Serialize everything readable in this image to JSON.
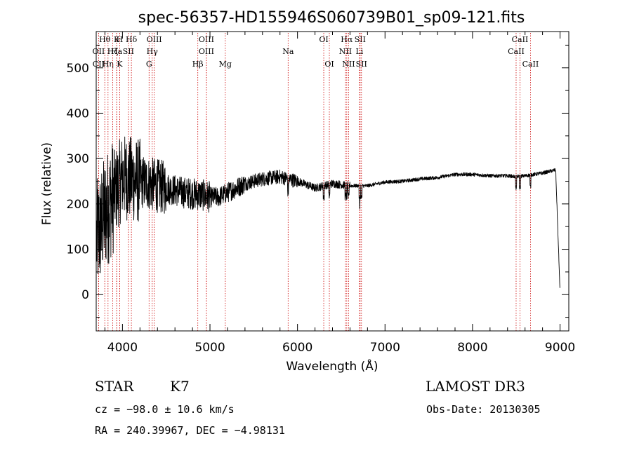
{
  "chart_data": {
    "type": "line",
    "title": "spec-56357-HD155946S060739B01_sp09-121.fits",
    "xlabel": "Wavelength (Å)",
    "ylabel": "Flux (relative)",
    "xlim": [
      3700,
      9100
    ],
    "ylim": [
      -80,
      580
    ],
    "xticks": [
      4000,
      5000,
      6000,
      7000,
      8000,
      9000
    ],
    "yticks": [
      0,
      100,
      200,
      300,
      400,
      500
    ],
    "spectrum_envelope": {
      "x": [
        3700,
        3800,
        3900,
        4000,
        4100,
        4200,
        4300,
        4400,
        4500,
        4700,
        4900,
        5000,
        5100,
        5200,
        5400,
        5600,
        5800,
        5900,
        6000,
        6200,
        6400,
        6600,
        6800,
        7000,
        7200,
        7400,
        7600,
        7800,
        8000,
        8200,
        8400,
        8500,
        8600,
        8800,
        8950,
        9000
      ],
      "y": [
        120,
        180,
        220,
        260,
        255,
        250,
        245,
        240,
        235,
        225,
        220,
        215,
        215,
        225,
        245,
        255,
        260,
        255,
        250,
        235,
        245,
        240,
        240,
        248,
        250,
        255,
        258,
        265,
        265,
        262,
        262,
        260,
        262,
        268,
        275,
        5
      ]
    },
    "lines": [
      {
        "label": "Hθ",
        "x": 3798,
        "row": 0
      },
      {
        "label": "OII",
        "x": 3727,
        "row": 1
      },
      {
        "label": "CII",
        "x": 3727,
        "row": 2
      },
      {
        "label": "Hη",
        "x": 3835,
        "row": 2
      },
      {
        "label": "Hζ",
        "x": 3889,
        "row": 1
      },
      {
        "label": "K",
        "x": 3934,
        "row": 0
      },
      {
        "label": "Ha",
        "x": 3934,
        "row": 1
      },
      {
        "label": "H",
        "x": 3968,
        "row": 0
      },
      {
        "label": "K",
        "x": 3968,
        "row": 2
      },
      {
        "label": "SII",
        "x": 4068,
        "row": 1
      },
      {
        "label": "Hδ",
        "x": 4102,
        "row": 0
      },
      {
        "label": "OIII",
        "x": 4363,
        "row": 0
      },
      {
        "label": "Hγ",
        "x": 4340,
        "row": 1
      },
      {
        "label": "G",
        "x": 4304,
        "row": 2
      },
      {
        "label": "OIII",
        "x": 4959,
        "row": 0
      },
      {
        "label": "OIII",
        "x": 4959,
        "row": 1
      },
      {
        "label": "Hβ",
        "x": 4861,
        "row": 2
      },
      {
        "label": "Mg",
        "x": 5175,
        "row": 2
      },
      {
        "label": "Na",
        "x": 5893,
        "row": 1
      },
      {
        "label": "OI",
        "x": 6300,
        "row": 0
      },
      {
        "label": "OI",
        "x": 6364,
        "row": 2
      },
      {
        "label": "Hα",
        "x": 6563,
        "row": 0
      },
      {
        "label": "SII",
        "x": 6716,
        "row": 0
      },
      {
        "label": "NII",
        "x": 6548,
        "row": 1
      },
      {
        "label": "Li",
        "x": 6708,
        "row": 1
      },
      {
        "label": "NII",
        "x": 6584,
        "row": 2
      },
      {
        "label": "SII",
        "x": 6731,
        "row": 2
      },
      {
        "label": "CaII",
        "x": 8542,
        "row": 0
      },
      {
        "label": "CaII",
        "x": 8498,
        "row": 1
      },
      {
        "label": "CaII",
        "x": 8662,
        "row": 2
      }
    ]
  },
  "info": {
    "class_label": "STAR",
    "subclass": "K7",
    "survey": "LAMOST DR3",
    "cz": "cz = −98.0 ± 10.6 km/s",
    "obs_date": "Obs-Date: 20130305",
    "coords": "RA = 240.39967, DEC =  −4.98131"
  },
  "colors": {
    "spectrum": "#000000",
    "line_marker": "#cc0000",
    "axes": "#000000"
  }
}
